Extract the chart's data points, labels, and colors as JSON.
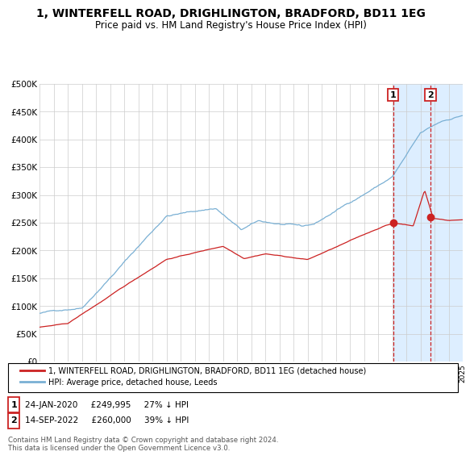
{
  "title": "1, WINTERFELL ROAD, DRIGHLINGTON, BRADFORD, BD11 1EG",
  "subtitle": "Price paid vs. HM Land Registry's House Price Index (HPI)",
  "title_fontsize": 10,
  "subtitle_fontsize": 8.5,
  "bg_color": "#ffffff",
  "plot_bg_color": "#ffffff",
  "grid_color": "#cccccc",
  "hpi_color": "#7ab0d4",
  "price_color": "#cc2222",
  "highlight_bg": "#ddeeff",
  "sale1_date": 2020.07,
  "sale1_price": 249995,
  "sale2_date": 2022.71,
  "sale2_price": 260000,
  "sale1_label": "1",
  "sale2_label": "2",
  "xmin": 1995,
  "xmax": 2025,
  "ymin": 0,
  "ymax": 500000,
  "yticks": [
    0,
    50000,
    100000,
    150000,
    200000,
    250000,
    300000,
    350000,
    400000,
    450000,
    500000
  ],
  "ytick_labels": [
    "£0",
    "£50K",
    "£100K",
    "£150K",
    "£200K",
    "£250K",
    "£300K",
    "£350K",
    "£400K",
    "£450K",
    "£500K"
  ],
  "legend_label_red": "1, WINTERFELL ROAD, DRIGHLINGTON, BRADFORD, BD11 1EG (detached house)",
  "legend_label_blue": "HPI: Average price, detached house, Leeds",
  "annotation1": "24-JAN-2020     £249,995     27% ↓ HPI",
  "annotation2": "14-SEP-2022     £260,000     39% ↓ HPI",
  "footnote": "Contains HM Land Registry data © Crown copyright and database right 2024.\nThis data is licensed under the Open Government Licence v3.0."
}
